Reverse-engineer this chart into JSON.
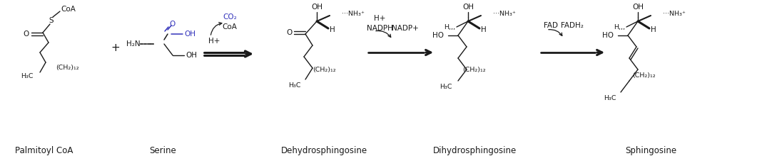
{
  "bg_color": "#ffffff",
  "black": "#1a1a1a",
  "blue": "#3333bb",
  "lfs": 8.5,
  "sfs": 7.5,
  "tfs": 6.8,
  "compounds": [
    "Palmitoyl CoA",
    "Serine",
    "Dehydrosphingosine",
    "Dihydrosphingosine",
    "Sphingosine"
  ],
  "figsize": [
    10.89,
    2.2
  ],
  "dpi": 100,
  "xlim": [
    0,
    10.89
  ],
  "ylim": [
    0,
    2.2
  ]
}
